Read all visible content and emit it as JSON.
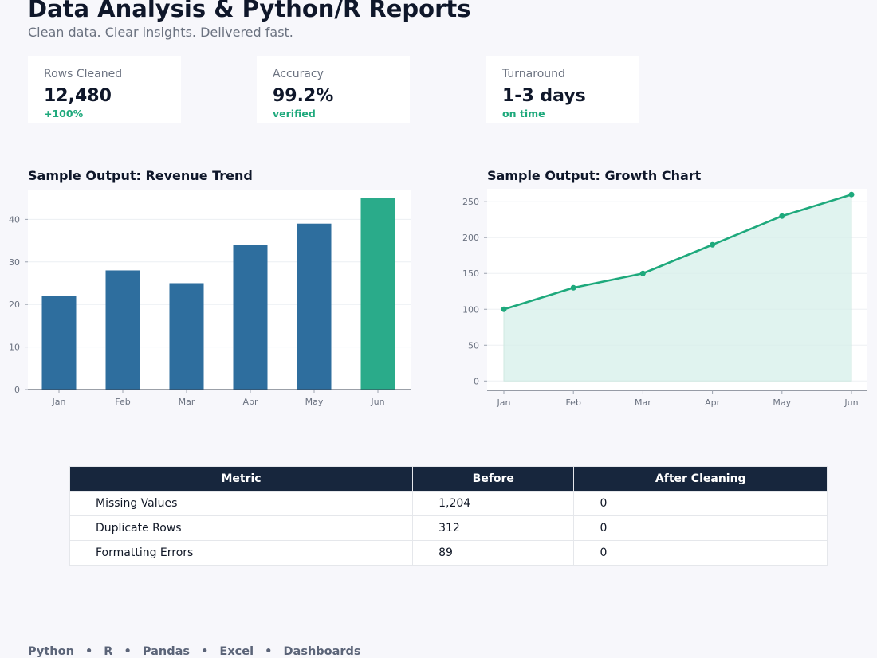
{
  "header": {
    "title": "Data Analysis & Python/R Reports",
    "subtitle": "Clean data. Clear insights. Delivered fast."
  },
  "kpis": [
    {
      "label": "Rows Cleaned",
      "value": "12,480",
      "delta": "+100%"
    },
    {
      "label": "Accuracy",
      "value": "99.2%",
      "delta": "verified"
    },
    {
      "label": "Turnaround",
      "value": "1-3 days",
      "delta": "on time"
    }
  ],
  "colors": {
    "bar": "#2e6e9e",
    "highlight": "#2aab8a",
    "line": "#1ea97c",
    "area": "#d6efe9",
    "table_header": "#17263d",
    "accent_text": "#1ea97c"
  },
  "chart_data": [
    {
      "type": "bar",
      "title": "Sample Output: Revenue Trend",
      "categories": [
        "Jan",
        "Feb",
        "Mar",
        "Apr",
        "May",
        "Jun"
      ],
      "values": [
        22,
        28,
        25,
        34,
        39,
        45
      ],
      "highlight_index": 5,
      "ylim": [
        0,
        47
      ],
      "yticks": [
        0,
        10,
        20,
        30,
        40
      ],
      "grid": true,
      "xlabel": "",
      "ylabel": ""
    },
    {
      "type": "area",
      "title": "Sample Output: Growth Chart",
      "categories": [
        "Jan",
        "Feb",
        "Mar",
        "Apr",
        "May",
        "Jun"
      ],
      "values": [
        100,
        130,
        150,
        190,
        230,
        260
      ],
      "ylim": [
        -13,
        268
      ],
      "yticks": [
        0,
        50,
        100,
        150,
        200,
        250
      ],
      "grid": true,
      "xlabel": "",
      "ylabel": ""
    }
  ],
  "table": {
    "headers": [
      "Metric",
      "Before",
      "After Cleaning"
    ],
    "rows": [
      [
        "Missing Values",
        "1,204",
        "0"
      ],
      [
        "Duplicate Rows",
        "312",
        "0"
      ],
      [
        "Formatting Errors",
        "89",
        "0"
      ]
    ]
  },
  "footer": {
    "items": [
      "Python",
      "R",
      "Pandas",
      "Excel",
      "Dashboards"
    ],
    "separator": "•"
  }
}
